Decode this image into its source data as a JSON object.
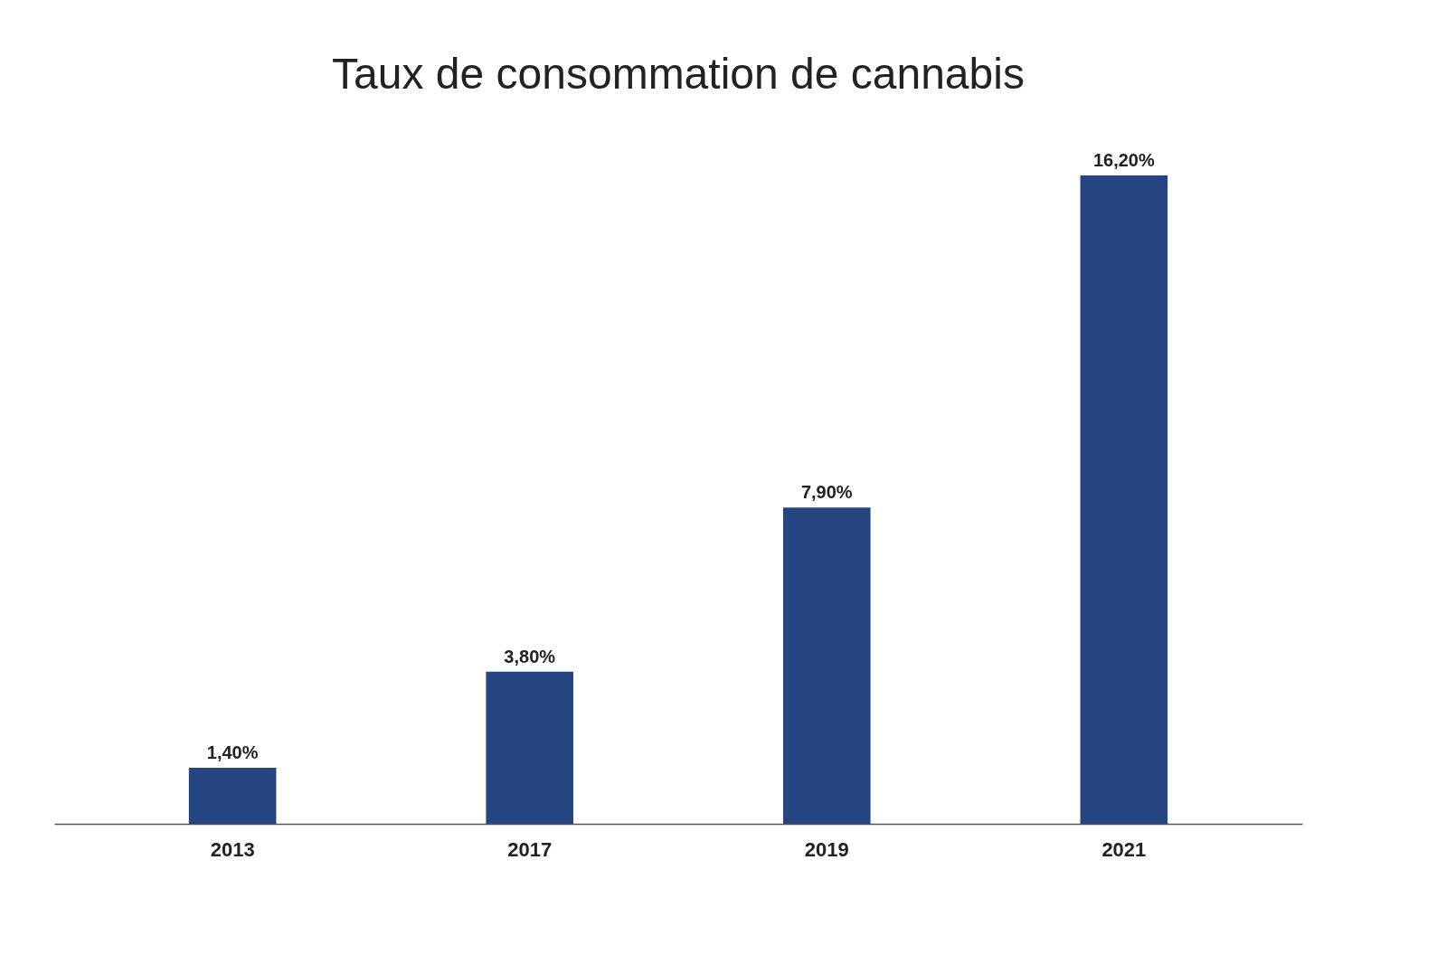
{
  "chart_data": {
    "type": "bar",
    "title": "Taux de consommation de cannabis",
    "categories": [
      "2013",
      "2017",
      "2019",
      "2021"
    ],
    "values": [
      1.4,
      3.8,
      7.9,
      16.2
    ],
    "value_labels": [
      "1,40%",
      "3,80%",
      "7,90%",
      "16,20%"
    ],
    "color": "#24457f",
    "tick_labels": "x"
  }
}
